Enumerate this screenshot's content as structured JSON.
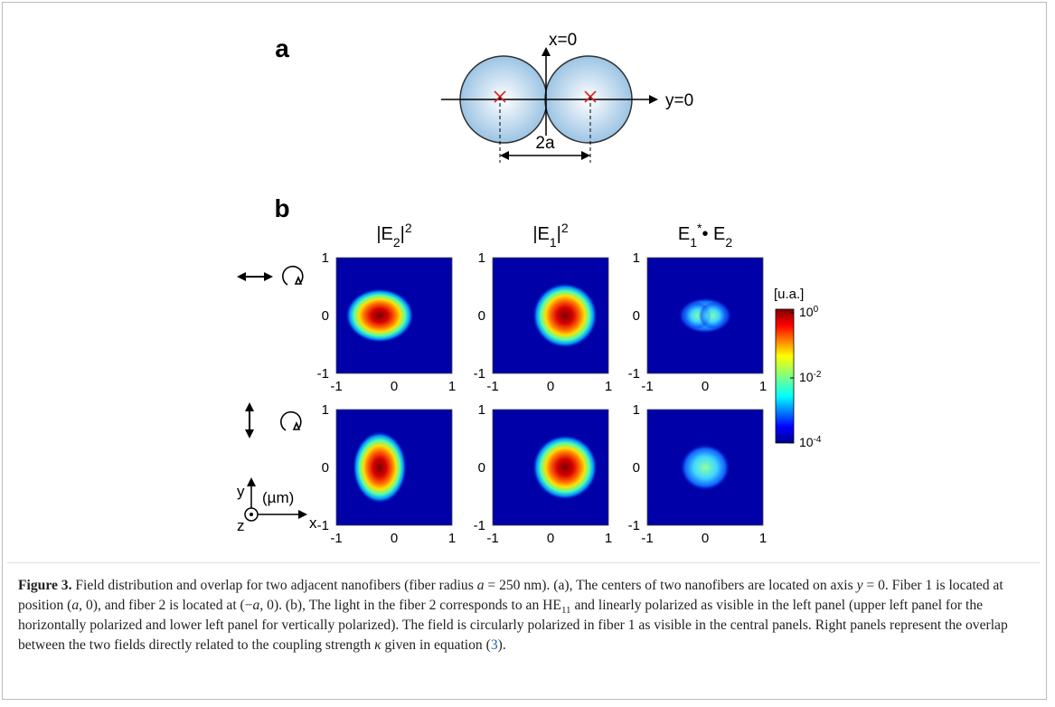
{
  "panel_a": {
    "label": "a",
    "vertical_axis": "x=0",
    "horizontal_axis": "y=0",
    "separation": "2a"
  },
  "panel_b": {
    "label": "b",
    "column_titles": [
      [
        {
          "text": "|E",
          "style": "normal"
        },
        {
          "text": "2",
          "style": "sub"
        },
        {
          "text": "|",
          "style": "normal"
        },
        {
          "text": "2",
          "style": "sup"
        }
      ],
      [
        {
          "text": "|E",
          "style": "normal"
        },
        {
          "text": "1",
          "style": "sub"
        },
        {
          "text": "|",
          "style": "normal"
        },
        {
          "text": "2",
          "style": "sup"
        }
      ],
      [
        {
          "text": "E",
          "style": "normal"
        },
        {
          "text": "1",
          "style": "sub"
        },
        {
          "text": "*",
          "style": "sup"
        },
        {
          "text": "• E",
          "style": "normal"
        },
        {
          "text": "2",
          "style": "sub"
        }
      ]
    ],
    "tick_labels": [
      "-1",
      "0",
      "1"
    ],
    "colorbar": {
      "unit": "[u.a.]",
      "ticks": [
        {
          "base": "10",
          "exp": "0"
        },
        {
          "base": "10",
          "exp": "-2"
        },
        {
          "base": "10",
          "exp": "-4"
        }
      ]
    },
    "axes_legend": {
      "y": "y",
      "x": "x",
      "z": "z",
      "unit": "(µm)"
    }
  },
  "caption": [
    {
      "text": "Figure 3.",
      "style": "bold"
    },
    {
      "text": " Field distribution and overlap for two adjacent nanofibers (fiber radius ",
      "style": "normal"
    },
    {
      "text": "a",
      "style": "italic"
    },
    {
      "text": " = 250 nm). (a), The centers of two nanofibers are located on axis ",
      "style": "normal"
    },
    {
      "text": "y",
      "style": "italic"
    },
    {
      "text": " = 0. Fiber 1 is located at position (",
      "style": "normal"
    },
    {
      "text": "a",
      "style": "italic"
    },
    {
      "text": ", 0), and fiber 2 is located at (−",
      "style": "normal"
    },
    {
      "text": "a",
      "style": "italic"
    },
    {
      "text": ", 0). (b), The light in the fiber 2 corresponds to an HE",
      "style": "normal"
    },
    {
      "text": "11",
      "style": "sub"
    },
    {
      "text": " and linearly polarized as visible in the left panel (upper left panel for the horizontally polarized and lower left panel for vertically polarized). The field is circularly polarized in fiber 1 as visible in the central panels. Right panels represent the overlap between the two fields directly related to the coupling strength ",
      "style": "normal"
    },
    {
      "text": "κ",
      "style": "italic"
    },
    {
      "text": " given in equation (",
      "style": "normal"
    },
    {
      "text": "3",
      "style": "link"
    },
    {
      "text": ").",
      "style": "normal"
    }
  ]
}
